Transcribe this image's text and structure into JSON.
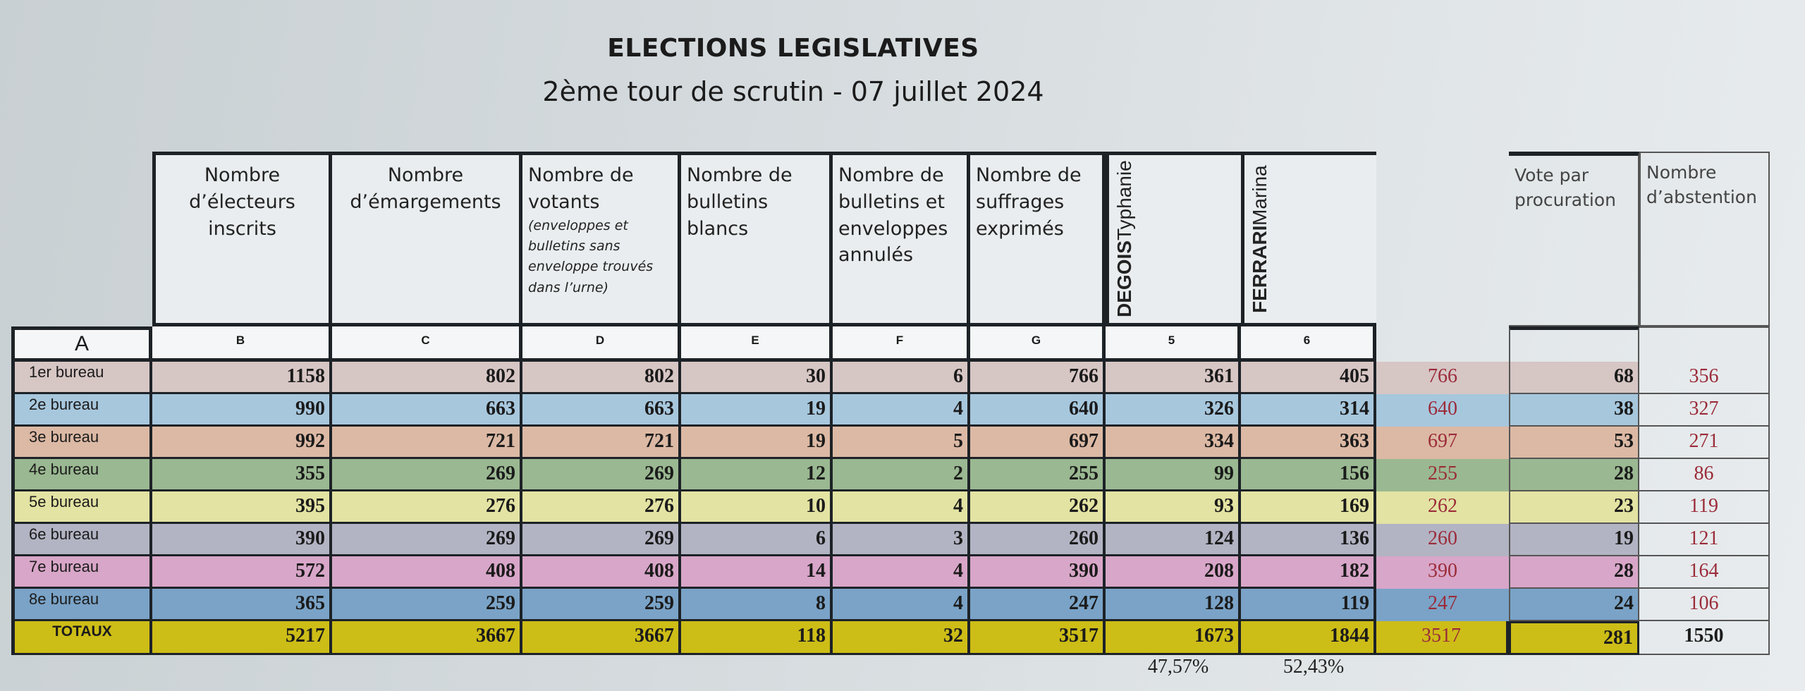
{
  "title": "ELECTIONS LEGISLATIVES",
  "subtitle": "2ème tour de scrutin - 07 juillet 2024",
  "headers": {
    "inscrits": "Nombre d’électeurs inscrits",
    "emargements": "Nombre d’émargements",
    "votants": "Nombre de votants",
    "votants_note": "(enveloppes et bulletins sans enveloppe trouvés dans l’urne)",
    "blancs": "Nombre de bulletins blancs",
    "annules": "Nombre de bulletins et enveloppes annulés",
    "exprimes": "Nombre de suffrages exprimés",
    "cand1_last": "DEGOIS",
    "cand1_first": "Typhanie",
    "cand2_last": "FERRARI",
    "cand2_first": "Marina",
    "procuration": "Vote par procuration",
    "abstention": "Nombre d’abstention"
  },
  "letters": [
    "A",
    "B",
    "C",
    "D",
    "E",
    "F",
    "G",
    "5",
    "6"
  ],
  "colors": {
    "row1": "#d6c6c4",
    "row2": "#a7c7dd",
    "row3": "#dcb9a4",
    "row4": "#9ab891",
    "row5": "#e3e3a3",
    "row6": "#b2b4c3",
    "row7": "#d8a6c8",
    "row8": "#7aa3c7",
    "total": "#cdbd17",
    "accent_red": "#9b2c3a"
  },
  "rows": [
    {
      "label": "1er bureau",
      "b": "1158",
      "c": "802",
      "d": "802",
      "e": "30",
      "f": "6",
      "g": "766",
      "c5": "361",
      "c6": "405",
      "check": "766",
      "proc": "68",
      "abs": "356"
    },
    {
      "label": "2e bureau",
      "b": "990",
      "c": "663",
      "d": "663",
      "e": "19",
      "f": "4",
      "g": "640",
      "c5": "326",
      "c6": "314",
      "check": "640",
      "proc": "38",
      "abs": "327"
    },
    {
      "label": "3e bureau",
      "b": "992",
      "c": "721",
      "d": "721",
      "e": "19",
      "f": "5",
      "g": "697",
      "c5": "334",
      "c6": "363",
      "check": "697",
      "proc": "53",
      "abs": "271"
    },
    {
      "label": "4e bureau",
      "b": "355",
      "c": "269",
      "d": "269",
      "e": "12",
      "f": "2",
      "g": "255",
      "c5": "99",
      "c6": "156",
      "check": "255",
      "proc": "28",
      "abs": "86"
    },
    {
      "label": "5e bureau",
      "b": "395",
      "c": "276",
      "d": "276",
      "e": "10",
      "f": "4",
      "g": "262",
      "c5": "93",
      "c6": "169",
      "check": "262",
      "proc": "23",
      "abs": "119"
    },
    {
      "label": "6e bureau",
      "b": "390",
      "c": "269",
      "d": "269",
      "e": "6",
      "f": "3",
      "g": "260",
      "c5": "124",
      "c6": "136",
      "check": "260",
      "proc": "19",
      "abs": "121"
    },
    {
      "label": "7e bureau",
      "b": "572",
      "c": "408",
      "d": "408",
      "e": "14",
      "f": "4",
      "g": "390",
      "c5": "208",
      "c6": "182",
      "check": "390",
      "proc": "28",
      "abs": "164"
    },
    {
      "label": "8e bureau",
      "b": "365",
      "c": "259",
      "d": "259",
      "e": "8",
      "f": "4",
      "g": "247",
      "c5": "128",
      "c6": "119",
      "check": "247",
      "proc": "24",
      "abs": "106"
    }
  ],
  "totals": {
    "label": "TOTAUX",
    "b": "5217",
    "c": "3667",
    "d": "3667",
    "e": "118",
    "f": "32",
    "g": "3517",
    "c5": "1673",
    "c6": "1844",
    "check": "3517",
    "proc": "281",
    "abs": "1550"
  },
  "percentages": {
    "cand1": "47,57%",
    "cand2": "52,43%"
  }
}
